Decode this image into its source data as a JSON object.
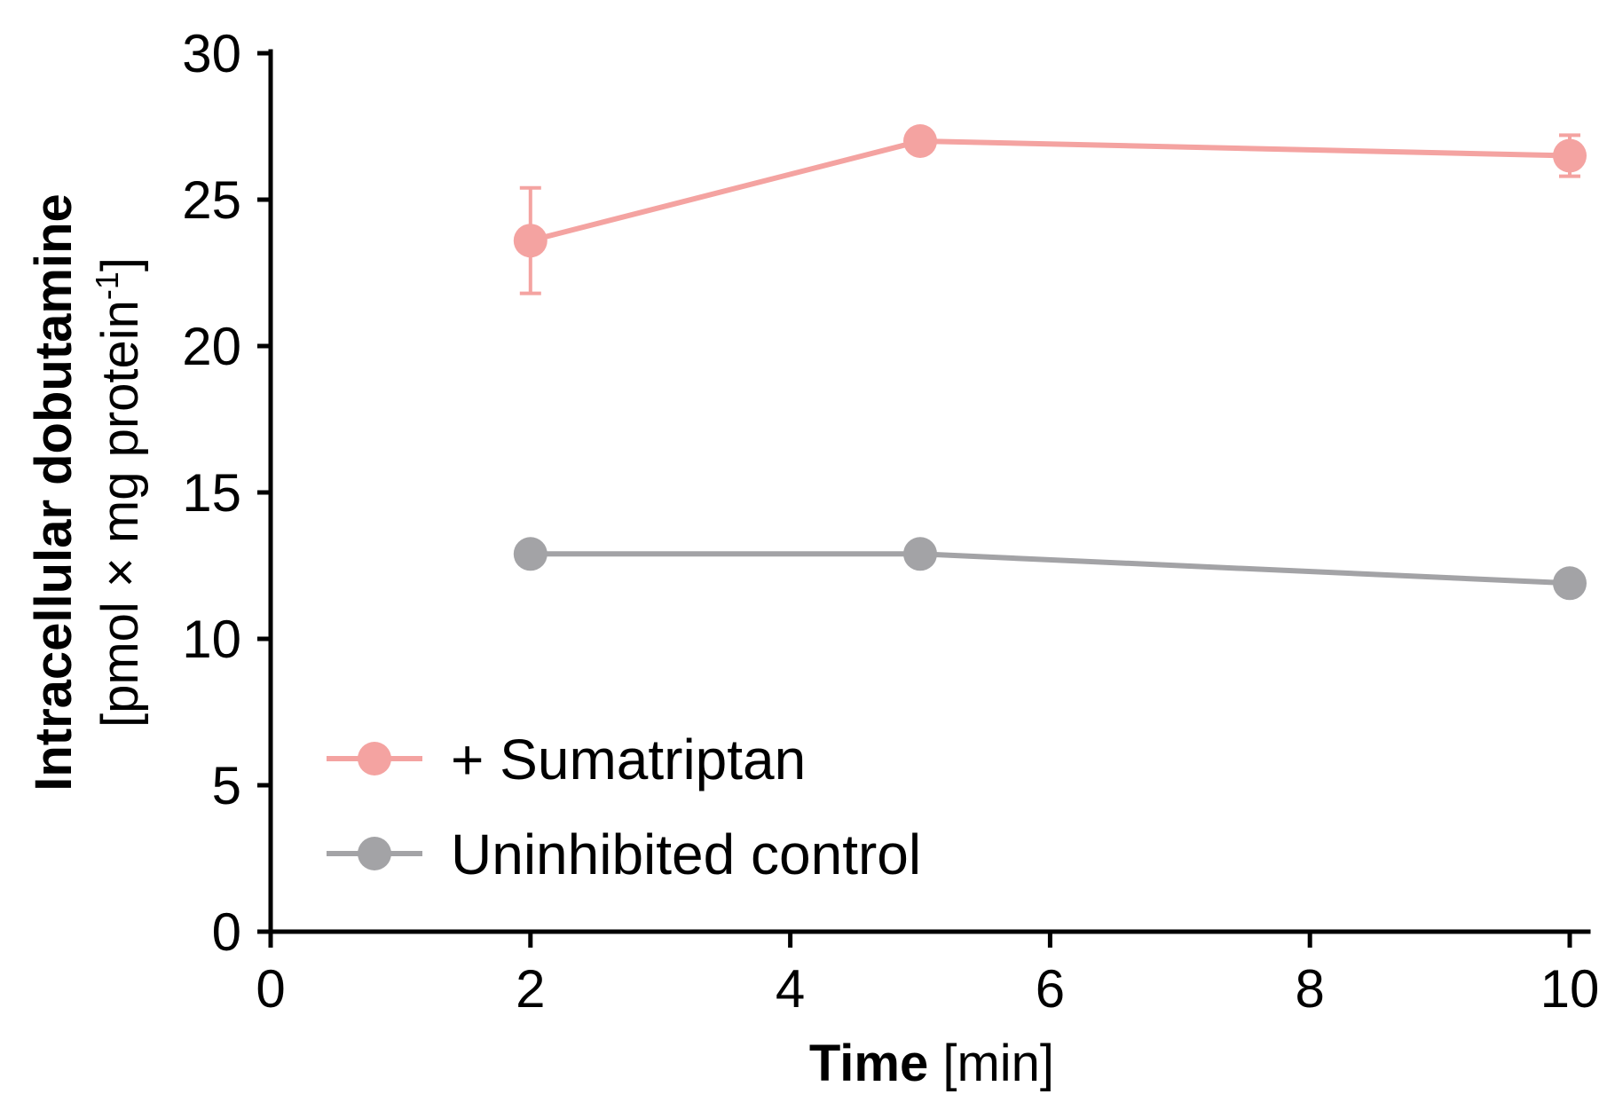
{
  "colors": {
    "sumatriptan": "#f4a3a1",
    "control": "#a3a3a6",
    "axis": "#000000"
  },
  "chart_data": {
    "type": "line",
    "x": [
      2,
      5,
      10
    ],
    "series": [
      {
        "name": "+ Sumatriptan",
        "values": [
          23.6,
          27.0,
          26.5
        ],
        "error": [
          1.8,
          0.3,
          0.7
        ],
        "color": "#f4a3a1"
      },
      {
        "name": "Uninhibited control",
        "values": [
          12.9,
          12.9,
          11.9
        ],
        "error": [
          0,
          0,
          0
        ],
        "color": "#a3a3a6"
      }
    ],
    "xlabel_bold": "Time",
    "xlabel_rest": " [min]",
    "ylabel_line1": "Intracellular dobutamine",
    "ylabel_line2_main": "[pmol × mg protein",
    "ylabel_line2_sup": "-1",
    "ylabel_line2_end": "]",
    "xlim": [
      0,
      10.5
    ],
    "ylim": [
      0,
      30
    ],
    "xticks": [
      "0",
      "2",
      "4",
      "6",
      "8",
      "10"
    ],
    "yticks": [
      "0",
      "5",
      "10",
      "15",
      "20",
      "25",
      "30"
    ],
    "grid": false,
    "legend_position": "bottom-left"
  }
}
